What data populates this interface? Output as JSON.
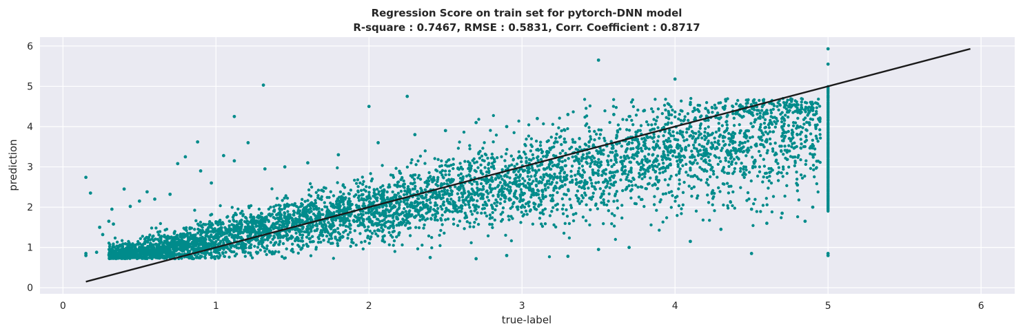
{
  "chart_data": {
    "type": "scatter",
    "title": "Regression Score on train set for pytorch-DNN model",
    "subtitle": "R-square : 0.7467,   RMSE : 0.5831,   Corr. Coefficient : 0.8717",
    "xlabel": "true-label",
    "ylabel": "prediction",
    "xlim": [
      -0.15,
      6.22
    ],
    "ylim": [
      -0.15,
      6.22
    ],
    "xticks": [
      "0",
      "1",
      "2",
      "3",
      "4",
      "5",
      "6"
    ],
    "yticks": [
      "0",
      "1",
      "2",
      "3",
      "4",
      "5",
      "6"
    ],
    "grid": true,
    "legend": "none",
    "colors": {
      "points": "#008b8b",
      "line": "#1a1a1a",
      "background": "#eaeaf2",
      "grid": "#ffffff"
    },
    "reference_line": {
      "x": [
        0.15,
        5.93
      ],
      "y": [
        0.15,
        5.93
      ]
    },
    "series": [
      {
        "marker": "dot",
        "points": [
          [
            0.15,
            2.74
          ],
          [
            0.18,
            2.35
          ],
          [
            0.15,
            0.85
          ],
          [
            0.15,
            0.8
          ],
          [
            0.22,
            0.88
          ],
          [
            0.24,
            1.5
          ],
          [
            0.26,
            1.32
          ],
          [
            0.3,
            1.65
          ],
          [
            0.33,
            1.58
          ],
          [
            0.32,
            1.95
          ],
          [
            0.32,
            0.9
          ],
          [
            0.4,
            2.45
          ],
          [
            0.44,
            2.02
          ],
          [
            0.5,
            2.15
          ],
          [
            0.55,
            2.38
          ],
          [
            0.6,
            2.2
          ],
          [
            0.7,
            2.32
          ],
          [
            0.75,
            3.08
          ],
          [
            0.8,
            3.25
          ],
          [
            0.88,
            3.62
          ],
          [
            0.9,
            2.9
          ],
          [
            0.97,
            2.6
          ],
          [
            1.05,
            3.28
          ],
          [
            1.12,
            4.25
          ],
          [
            1.12,
            3.15
          ],
          [
            1.21,
            3.6
          ],
          [
            1.31,
            5.03
          ],
          [
            1.32,
            2.95
          ],
          [
            1.45,
            3.0
          ],
          [
            1.6,
            3.1
          ],
          [
            1.8,
            3.3
          ],
          [
            2.0,
            4.5
          ],
          [
            2.06,
            3.6
          ],
          [
            2.25,
            4.75
          ],
          [
            2.3,
            3.8
          ],
          [
            2.5,
            3.9
          ],
          [
            2.7,
            4.1
          ],
          [
            2.9,
            4.0
          ],
          [
            3.1,
            4.2
          ],
          [
            3.3,
            4.3
          ],
          [
            3.5,
            5.65
          ],
          [
            3.6,
            4.3
          ],
          [
            3.8,
            4.4
          ],
          [
            4.0,
            5.18
          ],
          [
            4.1,
            4.55
          ],
          [
            4.2,
            4.45
          ],
          [
            4.4,
            4.35
          ],
          [
            4.5,
            4.5
          ],
          [
            4.6,
            4.4
          ],
          [
            4.75,
            4.55
          ],
          [
            4.9,
            4.4
          ],
          [
            5.0,
            5.93
          ],
          [
            5.0,
            5.55
          ],
          [
            5.0,
            0.8
          ],
          [
            5.0,
            0.85
          ],
          [
            4.5,
            0.85
          ],
          [
            4.1,
            1.15
          ],
          [
            3.7,
            1.0
          ],
          [
            3.5,
            0.95
          ],
          [
            3.3,
            0.78
          ],
          [
            2.9,
            0.8
          ],
          [
            2.7,
            0.72
          ],
          [
            2.4,
            0.75
          ],
          [
            4.3,
            1.45
          ],
          [
            4.6,
            1.6
          ],
          [
            4.85,
            1.65
          ],
          [
            4.8,
            2.55
          ],
          [
            4.5,
            1.95
          ],
          [
            4.9,
            3.3
          ],
          [
            4.9,
            2.0
          ],
          [
            4.7,
            1.85
          ]
        ]
      }
    ]
  }
}
